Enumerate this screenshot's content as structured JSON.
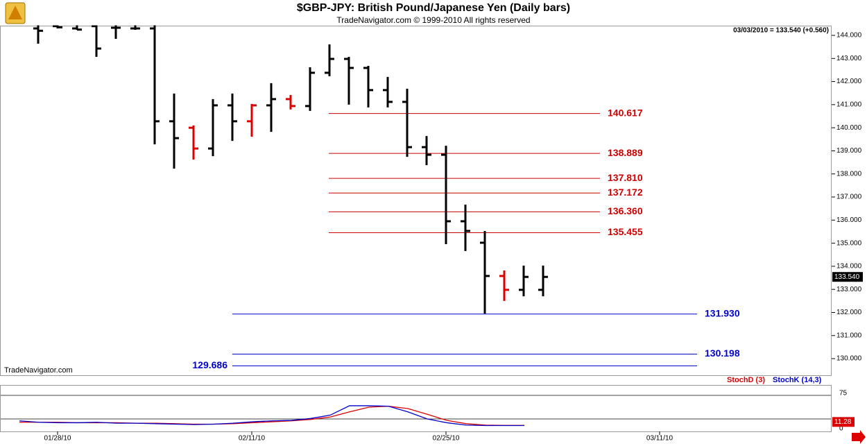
{
  "chart_data": {
    "type": "ohlc",
    "title": "$GBP-JPY:  British Pound/Japanese Yen  (Daily bars)",
    "subtitle": "TradeNavigator.com © 1999-2010 All rights reserved",
    "watermark": "TradeNavigator.com",
    "info": "03/03/2010 = 133.540 (+0.560)",
    "categories": [
      null,
      "01/28/10",
      null,
      null,
      null,
      null,
      null,
      null,
      null,
      null,
      null,
      "02/11/10",
      null,
      null,
      null,
      null,
      null,
      null,
      null,
      null,
      null,
      "02/25/10",
      null,
      null,
      null,
      null,
      null,
      null,
      null,
      null,
      null,
      null,
      "03/11/10"
    ],
    "open": [
      144.3,
      144.4,
      144.3,
      144.4,
      144.33,
      144.3,
      144.3,
      140.28,
      140.0,
      139.1,
      140.97,
      140.28,
      140.97,
      141.24,
      140.94,
      142.38,
      142.98,
      142.59,
      141.63,
      141.12,
      139.16,
      138.83,
      135.95,
      135.02,
      133.58,
      132.98,
      132.98,
      null,
      null,
      null,
      null,
      null,
      null
    ],
    "high": [
      144.6,
      144.5,
      144.5,
      144.5,
      144.5,
      144.48,
      144.48,
      141.48,
      140.1,
      141.24,
      141.48,
      141.03,
      141.93,
      141.42,
      142.62,
      143.61,
      143.07,
      142.68,
      142.2,
      141.69,
      139.64,
      139.22,
      136.67,
      135.53,
      133.82,
      134.03,
      134.03,
      null,
      null,
      null,
      null,
      null,
      null
    ],
    "low": [
      143.64,
      144.3,
      144.24,
      143.07,
      143.85,
      144.24,
      139.28,
      138.23,
      138.62,
      138.77,
      139.43,
      139.61,
      139.82,
      140.79,
      140.73,
      142.23,
      141.0,
      140.88,
      140.88,
      138.74,
      138.38,
      134.96,
      134.66,
      131.95,
      132.5,
      132.7,
      132.7,
      null,
      null,
      null,
      null,
      null,
      null
    ],
    "close": [
      144.2,
      144.35,
      144.25,
      143.43,
      144.33,
      144.3,
      140.28,
      139.55,
      139.1,
      140.97,
      140.28,
      140.97,
      141.24,
      140.94,
      142.38,
      142.98,
      142.59,
      141.63,
      141.12,
      139.16,
      138.83,
      135.95,
      135.53,
      133.58,
      132.98,
      133.54,
      133.54,
      null,
      null,
      null,
      null,
      null,
      null
    ],
    "bar_colors": [
      "#000000",
      "#000000",
      "#000000",
      "#000000",
      "#000000",
      "#000000",
      "#000000",
      "#000000",
      "#dd0000",
      "#000000",
      "#000000",
      "#dd0000",
      "#000000",
      "#dd0000",
      "#000000",
      "#000000",
      "#000000",
      "#000000",
      "#000000",
      "#000000",
      "#000000",
      "#000000",
      "#000000",
      "#000000",
      "#dd0000",
      "#000000",
      "#000000",
      null,
      null,
      null,
      null,
      null,
      null
    ],
    "ylim": [
      129.6,
      144.4
    ],
    "yticks": [
      {
        "value": 130,
        "label": "130.000"
      },
      {
        "value": 131,
        "label": "131.000"
      },
      {
        "value": 132,
        "label": "132.000"
      },
      {
        "value": 133,
        "label": "133.000"
      },
      {
        "value": 134,
        "label": "134.000"
      },
      {
        "value": 135,
        "label": "135.000"
      },
      {
        "value": 136,
        "label": "136.000"
      },
      {
        "value": 137,
        "label": "137.000"
      },
      {
        "value": 138,
        "label": "138.000"
      },
      {
        "value": 139,
        "label": "139.000"
      },
      {
        "value": 140,
        "label": "140.000"
      },
      {
        "value": 141,
        "label": "141.000"
      },
      {
        "value": 142,
        "label": "142.000"
      },
      {
        "value": 143,
        "label": "143.000"
      },
      {
        "value": 144,
        "label": "144.000"
      }
    ],
    "last": {
      "value": 133.54,
      "label": "133.540"
    },
    "levels": [
      {
        "value": 140.617,
        "label": "140.617",
        "color": "#cc0000"
      },
      {
        "value": 138.889,
        "label": "138.889",
        "color": "#cc0000"
      },
      {
        "value": 137.81,
        "label": "137.810",
        "color": "#cc0000"
      },
      {
        "value": 137.172,
        "label": "137.172",
        "color": "#cc0000"
      },
      {
        "value": 136.36,
        "label": "136.360",
        "color": "#cc0000"
      },
      {
        "value": 135.455,
        "label": "135.455",
        "color": "#cc0000"
      },
      {
        "value": 131.93,
        "label": "131.930",
        "color": "#0000cc"
      },
      {
        "value": 130.198,
        "label": "130.198",
        "color": "#0000cc"
      },
      {
        "value": 129.686,
        "label": "129.686",
        "color": "#0000cc"
      }
    ],
    "stochastic": {
      "ylim": [
        0,
        100
      ],
      "yticks": [
        0,
        75
      ],
      "lines": [
        25,
        75
      ],
      "last": {
        "value": 11.28,
        "label": "11.28"
      },
      "series": [
        {
          "name": "StochD (3)",
          "color": "#dd0000",
          "values": [
            18,
            18,
            18,
            17,
            17,
            17,
            16,
            16,
            15,
            14,
            14,
            15,
            17,
            19,
            21,
            24,
            29,
            40,
            50,
            52,
            47,
            35,
            22,
            15,
            12,
            11.3,
            11.28,
            null,
            null,
            null,
            null,
            null,
            null
          ]
        },
        {
          "name": "StochK (14,3)",
          "color": "#0000cc",
          "values": [
            21,
            18,
            17,
            17,
            18,
            16,
            16,
            15,
            14,
            13,
            14,
            16,
            19,
            21,
            22,
            26,
            33,
            53,
            53,
            52,
            40,
            25,
            17,
            12,
            11,
            11,
            11,
            null,
            null,
            null,
            null,
            null,
            null
          ]
        }
      ]
    }
  }
}
